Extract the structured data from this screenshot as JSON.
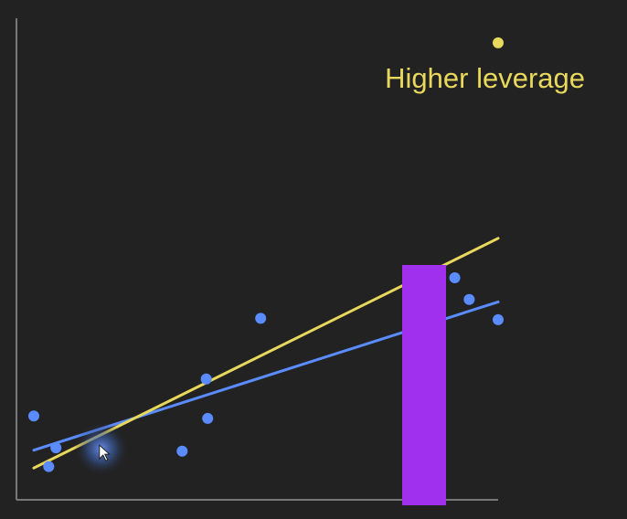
{
  "chart_data": {
    "type": "scatter",
    "title": "",
    "xlabel": "",
    "ylabel": "",
    "xlim": [
      0,
      100
    ],
    "ylim": [
      0,
      100
    ],
    "grid": false,
    "annotation": {
      "text": "Higher leverage",
      "color": "#e8d85c"
    },
    "series": [
      {
        "kind": "points",
        "color": "#5b8cff",
        "points": [
          {
            "x": 3.6,
            "y": 17.4
          },
          {
            "x": 8.2,
            "y": 10.8
          },
          {
            "x": 6.7,
            "y": 6.9
          },
          {
            "x": 34.4,
            "y": 10.1
          },
          {
            "x": 39.4,
            "y": 25.1
          },
          {
            "x": 39.7,
            "y": 16.9
          },
          {
            "x": 50.7,
            "y": 37.7
          },
          {
            "x": 91.0,
            "y": 46.1
          },
          {
            "x": 94.0,
            "y": 41.6
          },
          {
            "x": 100.0,
            "y": 37.4
          }
        ]
      },
      {
        "kind": "points",
        "color": "#e8d85c",
        "points": [
          {
            "x": 100.0,
            "y": 94.9
          }
        ]
      },
      {
        "kind": "line",
        "color": "#5b8cff",
        "from": {
          "x": 3.6,
          "y": 10.3
        },
        "to": {
          "x": 100.0,
          "y": 41.1
        }
      },
      {
        "kind": "line",
        "color": "#e8d85c",
        "from": {
          "x": 3.6,
          "y": 6.6
        },
        "to": {
          "x": 100.0,
          "y": 54.3
        }
      }
    ],
    "cursor": {
      "x": 17.6,
      "y": 10.6
    },
    "overlay_color": "#a030ee"
  }
}
